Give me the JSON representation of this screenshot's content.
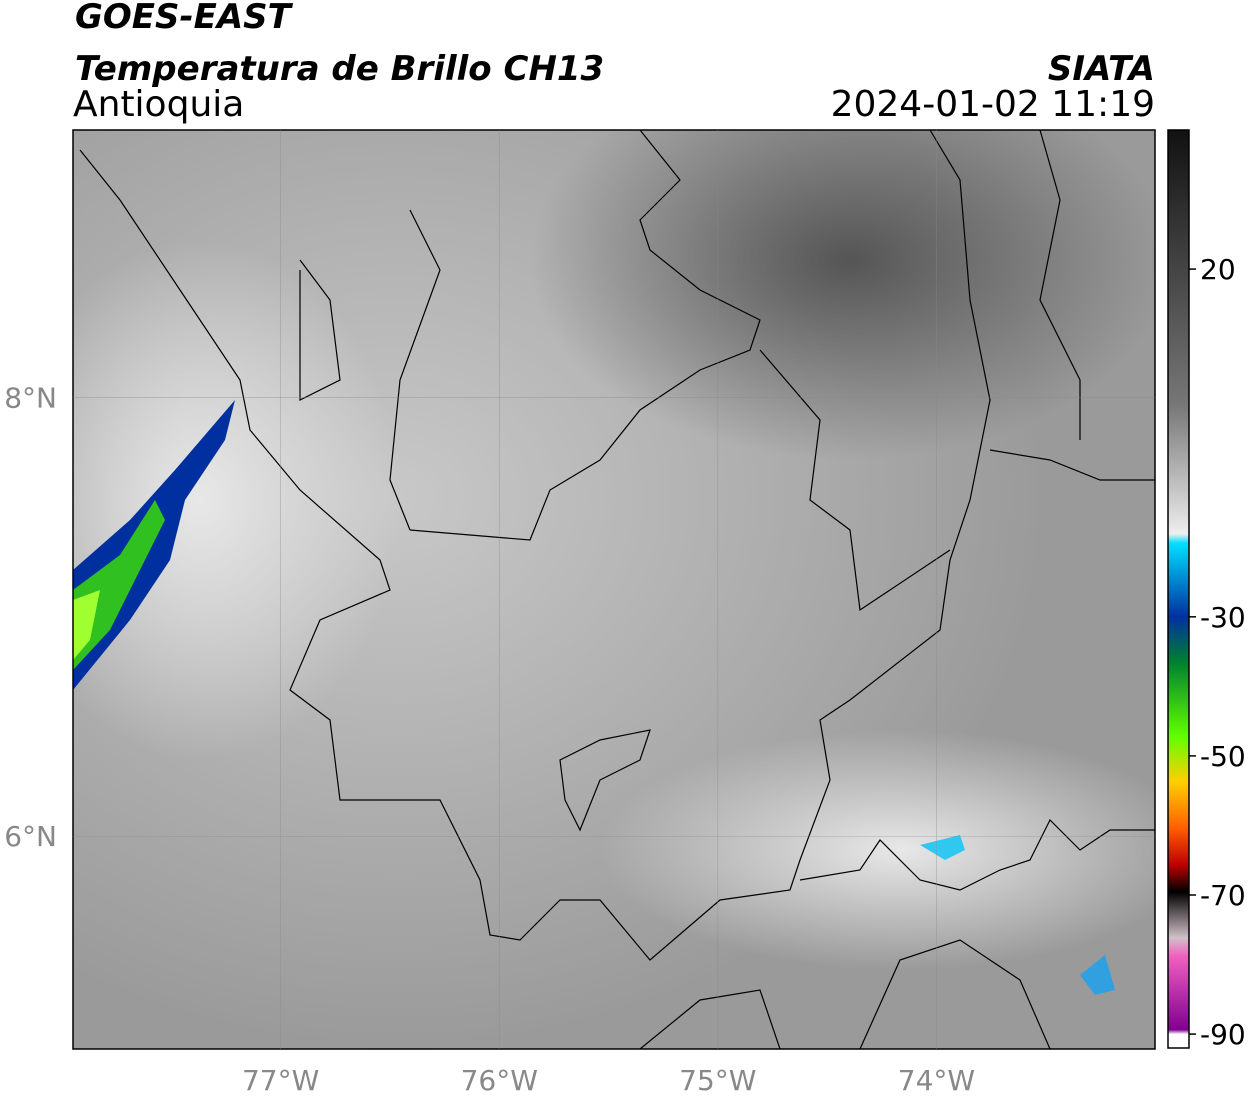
{
  "header": {
    "title": "GOES-EAST",
    "subtitle": "Temperatura de Brillo CH13",
    "region": "Antioquia",
    "source": "SIATA",
    "datetime": "2024-01-02 11:19"
  },
  "map": {
    "lonlim": [
      -77.95,
      -73.0
    ],
    "latlim": [
      5.03,
      9.22
    ],
    "lonticks": [
      {
        "value": -77,
        "label": "77°W"
      },
      {
        "value": -76,
        "label": "76°W"
      },
      {
        "value": -75,
        "label": "75°W"
      },
      {
        "value": -74,
        "label": "74°W"
      }
    ],
    "latticks": [
      {
        "value": 8,
        "label": "8°N"
      },
      {
        "value": 6,
        "label": "6°N"
      }
    ]
  },
  "colorbar": {
    "clim": [
      -92,
      40
    ],
    "ticks": [
      20,
      -30,
      -50,
      -70,
      -90
    ]
  }
}
